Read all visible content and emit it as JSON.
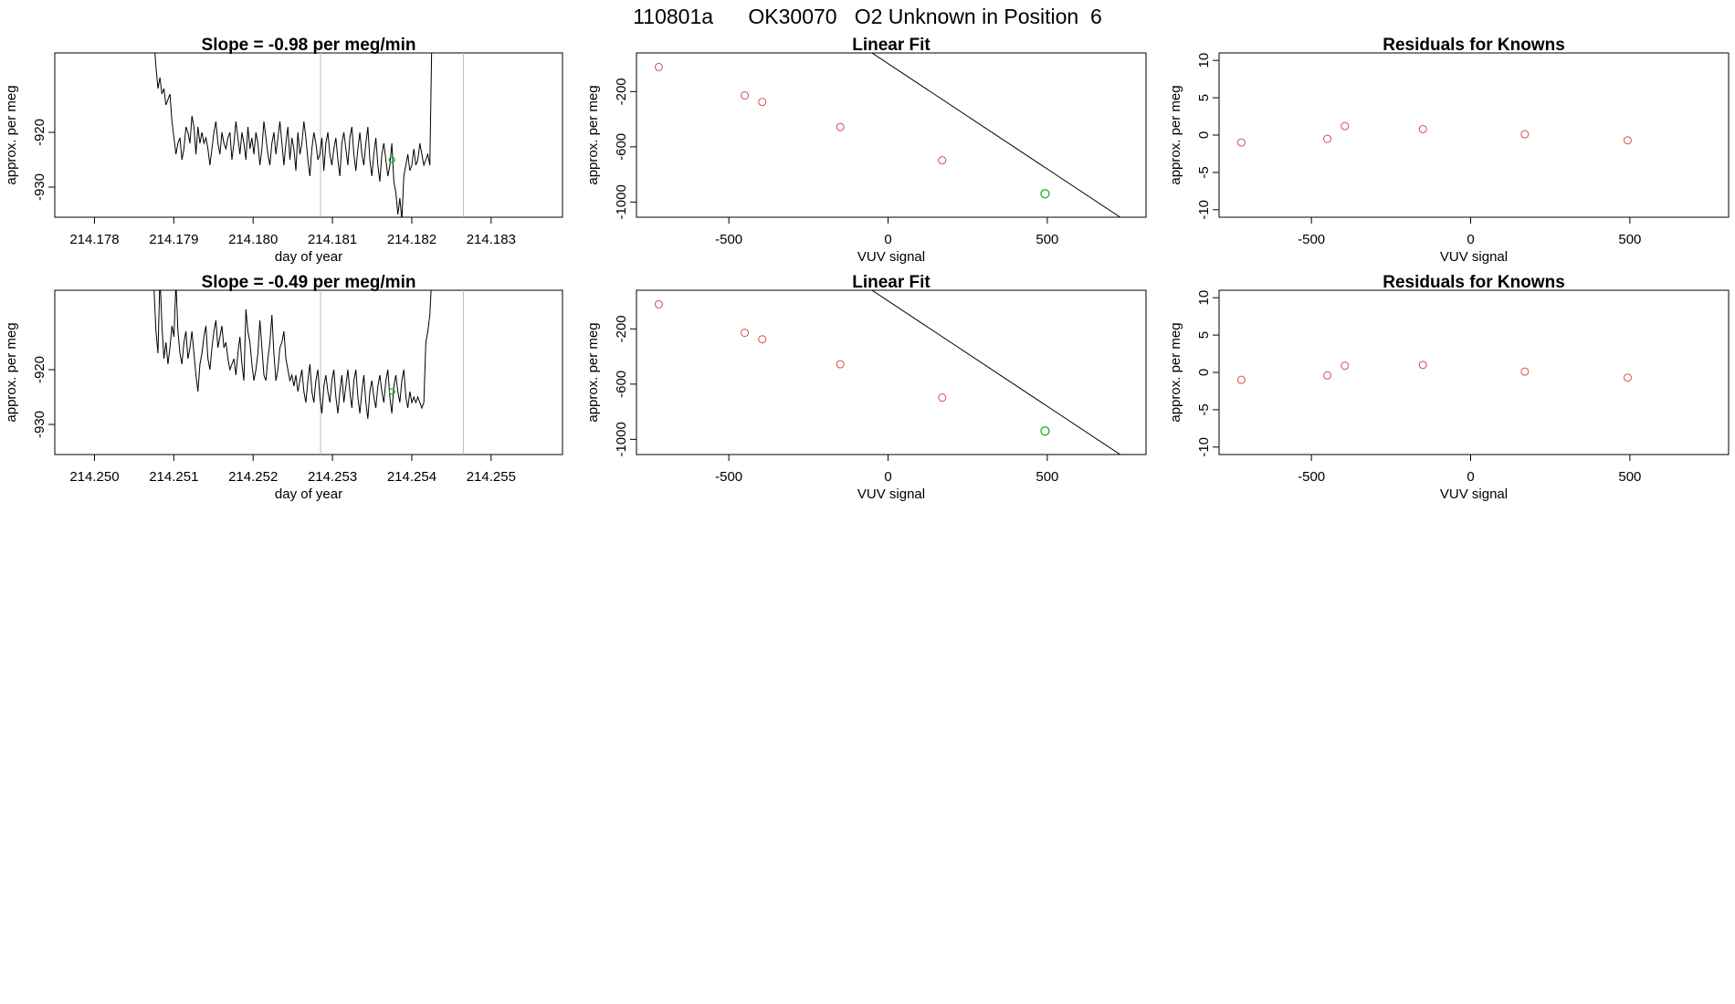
{
  "page_title": "110801a      OK30070   O2 Unknown in Position  6",
  "colors": {
    "series_line": "#000000",
    "known_point": "#d05050",
    "unknown_point": "#22aa22",
    "vline": "#bbbbbb",
    "fit_line": "#000000"
  },
  "chart_data": [
    {
      "id": "ts1",
      "type": "line",
      "title": "Slope =  -0.98  per meg/min",
      "xlabel": "day of year",
      "ylabel": "approx. per meg",
      "xlim": [
        214.1775,
        214.1839
      ],
      "ylim": [
        -935.5,
        -905.5
      ],
      "xticks": [
        "214.178",
        "214.179",
        "214.180",
        "214.181",
        "214.182",
        "214.183"
      ],
      "yticks": [
        "-930",
        "-920"
      ],
      "vlines": [
        214.18085,
        214.18265
      ],
      "x_start": 214.17875,
      "x_step": 2.52e-05,
      "values": [
        -903,
        -908,
        -912,
        -910,
        -913,
        -912,
        -915,
        -914,
        -913,
        -918,
        -921,
        -924,
        -922,
        -921,
        -925,
        -923,
        -919,
        -920,
        -922,
        -917,
        -919,
        -924,
        -919,
        -922,
        -920,
        -922,
        -921,
        -923,
        -926,
        -923,
        -920,
        -918,
        -922,
        -924,
        -920,
        -922,
        -923,
        -921,
        -920,
        -925,
        -922,
        -918,
        -921,
        -924,
        -920,
        -922,
        -925,
        -919,
        -923,
        -921,
        -924,
        -920,
        -922,
        -926,
        -923,
        -918,
        -921,
        -924,
        -926,
        -922,
        -920,
        -924,
        -921,
        -918,
        -922,
        -926,
        -922,
        -919,
        -925,
        -921,
        -923,
        -927,
        -920,
        -924,
        -922,
        -918,
        -921,
        -925,
        -928,
        -923,
        -920,
        -922,
        -925,
        -924,
        -921,
        -927,
        -922,
        -920,
        -924,
        -926,
        -923,
        -921,
        -925,
        -928,
        -922,
        -920,
        -923,
        -926,
        -921,
        -919,
        -924,
        -927,
        -923,
        -920,
        -924,
        -926,
        -922,
        -919,
        -925,
        -928,
        -924,
        -921,
        -926,
        -929,
        -924,
        -922,
        -925,
        -928,
        -926,
        -922,
        -929,
        -931,
        -935,
        -932,
        -936,
        -928,
        -926,
        -924,
        -927,
        -926,
        -923,
        -926,
        -925,
        -922,
        -924,
        -926,
        -925,
        -924,
        -926,
        -903
      ],
      "highlight": {
        "x": 214.18175,
        "y": -925
      }
    },
    {
      "id": "fit1",
      "type": "scatter",
      "title": "Linear Fit",
      "xlabel": "VUV signal",
      "ylabel": "approx. per meg",
      "xlim": [
        -790,
        810
      ],
      "ylim": [
        -1110,
        80
      ],
      "xticks": [
        -500,
        0,
        500
      ],
      "yticks": [
        -200,
        -600,
        -1000
      ],
      "fit_line": {
        "x": [
          -720,
          750
        ],
        "y": 3.0,
        "slope": -1.527
      },
      "known_x": [
        -720,
        -450,
        -395,
        -150,
        170
      ],
      "known_y": [
        -22,
        -228,
        -275,
        -456,
        -698
      ],
      "unknown_x": [
        493
      ],
      "unknown_y": [
        -940
      ]
    },
    {
      "id": "res1",
      "type": "scatter",
      "title": "Residuals for Knowns",
      "xlabel": "VUV signal",
      "ylabel": "approx. per meg",
      "xlim": [
        -790,
        810
      ],
      "ylim": [
        -11,
        11
      ],
      "xticks": [
        -500,
        0,
        500
      ],
      "yticks": [
        10,
        5,
        0,
        -5,
        -10
      ],
      "known_x": [
        -720,
        -450,
        -395,
        -150,
        170,
        493
      ],
      "known_y": [
        -1.0,
        -0.5,
        1.2,
        0.8,
        0.1,
        -0.7
      ]
    },
    {
      "id": "ts2",
      "type": "line",
      "title": "Slope =  -0.49  per meg/min",
      "xlabel": "day of year",
      "ylabel": "approx. per meg",
      "xlim": [
        214.2495,
        214.2559
      ],
      "ylim": [
        -935.5,
        -905.5
      ],
      "xticks": [
        "214.250",
        "214.251",
        "214.252",
        "214.253",
        "214.254",
        "214.255"
      ],
      "yticks": [
        "-930",
        "-920"
      ],
      "vlines": [
        214.25285,
        214.25465
      ],
      "x_start": 214.25075,
      "x_step": 2.52e-05,
      "values": [
        -905,
        -913,
        -917,
        -903,
        -912,
        -918,
        -915,
        -919,
        -916,
        -912,
        -914,
        -904,
        -913,
        -917,
        -919,
        -915,
        -913,
        -918,
        -916,
        -913,
        -917,
        -921,
        -924,
        -919,
        -917,
        -914,
        -912,
        -918,
        -920,
        -916,
        -913,
        -911,
        -916,
        -914,
        -912,
        -916,
        -915,
        -918,
        -920,
        -919,
        -918,
        -921,
        -917,
        -914,
        -919,
        -922,
        -909,
        -913,
        -915,
        -919,
        -922,
        -920,
        -917,
        -911,
        -916,
        -921,
        -922,
        -918,
        -915,
        -910,
        -917,
        -922,
        -920,
        -916,
        -915,
        -913,
        -918,
        -920,
        -922,
        -921,
        -923,
        -921,
        -924,
        -922,
        -920,
        -924,
        -926,
        -922,
        -919,
        -924,
        -926,
        -922,
        -920,
        -925,
        -928,
        -923,
        -921,
        -924,
        -926,
        -922,
        -920,
        -925,
        -928,
        -924,
        -921,
        -926,
        -923,
        -920,
        -924,
        -927,
        -922,
        -920,
        -925,
        -928,
        -924,
        -921,
        -926,
        -929,
        -924,
        -922,
        -925,
        -927,
        -923,
        -921,
        -924,
        -926,
        -922,
        -920,
        -925,
        -928,
        -923,
        -921,
        -924,
        -926,
        -922,
        -920,
        -925,
        -927,
        -924,
        -926,
        -925,
        -926,
        -925,
        -926,
        -927,
        -926,
        -915,
        -913,
        -910,
        -903
      ],
      "highlight": {
        "x": 214.25375,
        "y": -924
      }
    },
    {
      "id": "fit2",
      "type": "scatter",
      "title": "Linear Fit",
      "xlabel": "VUV signal",
      "ylabel": "approx. per meg",
      "xlim": [
        -790,
        810
      ],
      "ylim": [
        -1110,
        80
      ],
      "xticks": [
        -500,
        0,
        500
      ],
      "yticks": [
        -200,
        -600,
        -1000
      ],
      "fit_line": {
        "x": [
          -720,
          750
        ],
        "y": 3.0,
        "slope": -1.527
      },
      "known_x": [
        -720,
        -450,
        -395,
        -150,
        170
      ],
      "known_y": [
        -22,
        -228,
        -275,
        -456,
        -698
      ],
      "unknown_x": [
        493
      ],
      "unknown_y": [
        -940
      ]
    },
    {
      "id": "res2",
      "type": "scatter",
      "title": "Residuals for Knowns",
      "xlabel": "VUV signal",
      "ylabel": "approx. per meg",
      "xlim": [
        -790,
        810
      ],
      "ylim": [
        -11,
        11
      ],
      "xticks": [
        -500,
        0,
        500
      ],
      "yticks": [
        10,
        5,
        0,
        -5,
        -10
      ],
      "known_x": [
        -720,
        -450,
        -395,
        -150,
        170,
        493
      ],
      "known_y": [
        -1.0,
        -0.4,
        0.9,
        1.0,
        0.1,
        -0.7
      ]
    }
  ]
}
